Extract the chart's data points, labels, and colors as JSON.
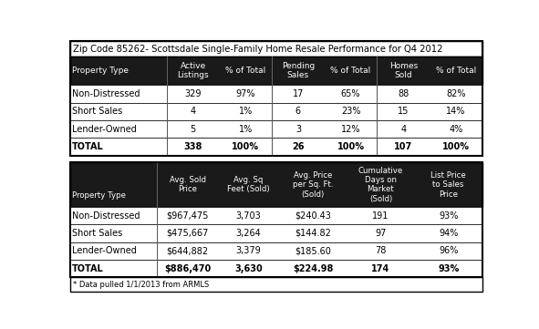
{
  "title": "Zip Code 85262- Scottsdale Single-Family Home Resale Performance for Q4 2012",
  "footnote": "* Data pulled 1/1/2013 from ARMLS",
  "table1": {
    "col_headers": [
      "Property Type",
      "Active\nListings",
      "% of Total",
      "Pending\nSales",
      "% of Total",
      "Homes\nSold",
      "% of Total"
    ],
    "rows": [
      [
        "Non-Distressed",
        "329",
        "97%",
        "17",
        "65%",
        "88",
        "82%"
      ],
      [
        "Short Sales",
        "4",
        "1%",
        "6",
        "23%",
        "15",
        "14%"
      ],
      [
        "Lender-Owned",
        "5",
        "1%",
        "3",
        "12%",
        "4",
        "4%"
      ],
      [
        "TOTAL",
        "338",
        "100%",
        "26",
        "100%",
        "107",
        "100%"
      ]
    ],
    "col_props": [
      0.22,
      0.12,
      0.12,
      0.12,
      0.12,
      0.12,
      0.12
    ],
    "group_starts": [
      1,
      3,
      5
    ]
  },
  "table2": {
    "col_headers": [
      "Property Type",
      "Avg. Sold\nPrice",
      "Avg. Sq\nFeet (Sold)",
      "Avg. Price\nper Sq. Ft.\n(Sold)",
      "Cumulative\nDays on\nMarket\n(Sold)",
      "List Price\nto Sales\nPrice"
    ],
    "rows": [
      [
        "Non-Distressed",
        "$967,475",
        "3,703",
        "$240.43",
        "191",
        "93%"
      ],
      [
        "Short Sales",
        "$475,667",
        "3,264",
        "$144.82",
        "97",
        "94%"
      ],
      [
        "Lender-Owned",
        "$644,882",
        "3,379",
        "$185.60",
        "78",
        "96%"
      ],
      [
        "TOTAL",
        "$886,470",
        "3,630",
        "$224.98",
        "174",
        "93%"
      ]
    ],
    "col_props": [
      0.21,
      0.148,
      0.148,
      0.164,
      0.164,
      0.164
    ]
  },
  "header_bg": "#1a1a1a",
  "header_fg": "#ffffff",
  "border_color": "#000000",
  "total_row_bg": "#ffffff",
  "normal_row_bg": "#ffffff"
}
